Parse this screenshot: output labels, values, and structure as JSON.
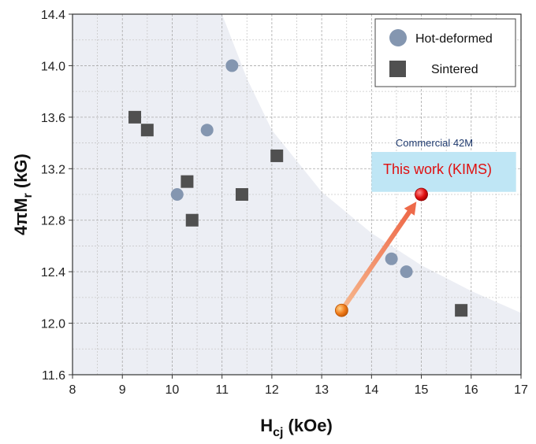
{
  "chart_data": {
    "type": "scatter",
    "xlabel": {
      "main": "H",
      "sub": "cj",
      "unit": " (kOe)"
    },
    "ylabel": {
      "prefix": "4πM",
      "sub": "r",
      "unit": " (kG)"
    },
    "xlim": [
      8,
      17
    ],
    "ylim": [
      11.6,
      14.4
    ],
    "xticks": [
      "8",
      "9",
      "10",
      "11",
      "12",
      "13",
      "14",
      "15",
      "16",
      "17"
    ],
    "yticks": [
      "11.6",
      "12.0",
      "12.4",
      "12.8",
      "13.2",
      "13.6",
      "14.0",
      "14.4"
    ],
    "grid": true,
    "legend_position": "top-right",
    "series": [
      {
        "name": "Hot-deformed",
        "marker": "circle",
        "color": "#8496b0",
        "points": [
          {
            "x": 11.2,
            "y": 14.0
          },
          {
            "x": 10.7,
            "y": 13.5
          },
          {
            "x": 10.1,
            "y": 13.0
          },
          {
            "x": 14.4,
            "y": 12.5
          },
          {
            "x": 14.7,
            "y": 12.4
          }
        ]
      },
      {
        "name": "Sintered",
        "marker": "square",
        "color": "#505050",
        "points": [
          {
            "x": 9.25,
            "y": 13.6
          },
          {
            "x": 9.5,
            "y": 13.5
          },
          {
            "x": 10.3,
            "y": 13.1
          },
          {
            "x": 10.4,
            "y": 12.8
          },
          {
            "x": 11.4,
            "y": 13.0
          },
          {
            "x": 12.1,
            "y": 13.3
          },
          {
            "x": 15.8,
            "y": 12.1
          }
        ]
      }
    ],
    "highlights": {
      "start": {
        "x": 13.4,
        "y": 12.1,
        "color": "#f07a1a"
      },
      "end": {
        "x": 15.0,
        "y": 13.0,
        "color": "#e01010"
      },
      "arrow_color": "#f07a5a"
    },
    "annotations": {
      "commercial_label": "Commercial 42M",
      "commercial_box": {
        "x0": 14.0,
        "x1": 16.9,
        "y0": 13.02,
        "y1": 13.33,
        "color": "#bfe6f5"
      },
      "this_work_label": "This work (KIMS)",
      "this_work_color": "#e01010"
    },
    "shaded_region_color": "#eceef4"
  }
}
